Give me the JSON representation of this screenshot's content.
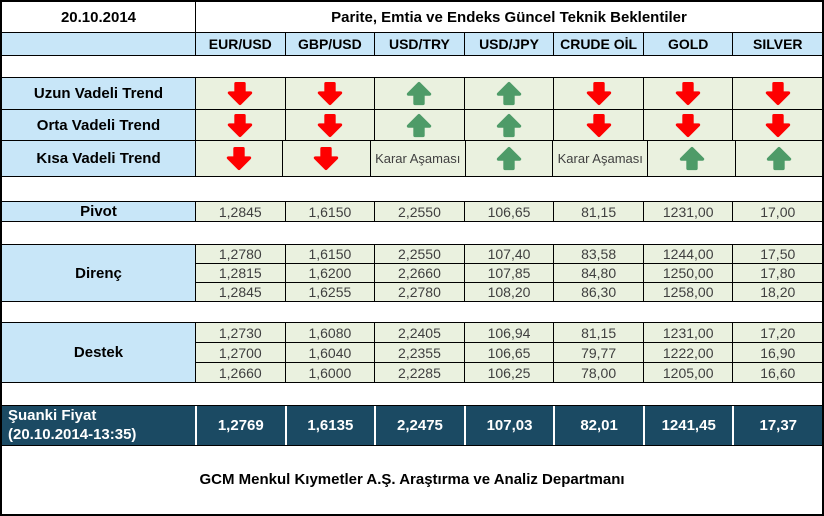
{
  "date": "20.10.2014",
  "title": "Parite, Emtia ve Endeks Güncel Teknik Beklentiler",
  "columns": [
    "EUR/USD",
    "GBP/USD",
    "USD/TRY",
    "USD/JPY",
    "CRUDE OİL",
    "GOLD",
    "SILVER"
  ],
  "trends": {
    "karar_label": "Karar Aşaması",
    "rows": [
      {
        "label": "Uzun Vadeli Trend",
        "cells": [
          "down",
          "down",
          "up",
          "up",
          "down",
          "down",
          "down"
        ]
      },
      {
        "label": "Orta Vadeli Trend",
        "cells": [
          "down",
          "down",
          "up",
          "up",
          "down",
          "down",
          "down"
        ]
      },
      {
        "label": "Kısa Vadeli Trend",
        "cells": [
          "down",
          "down",
          "karar",
          "up",
          "karar",
          "up",
          "up"
        ]
      }
    ]
  },
  "pivot": {
    "label": "Pivot",
    "values": [
      "1,2845",
      "1,6150",
      "2,2550",
      "106,65",
      "81,15",
      "1231,00",
      "17,00"
    ]
  },
  "resistance": {
    "label": "Direnç",
    "rows": [
      [
        "1,2780",
        "1,6150",
        "2,2550",
        "107,40",
        "83,58",
        "1244,00",
        "17,50"
      ],
      [
        "1,2815",
        "1,6200",
        "2,2660",
        "107,85",
        "84,80",
        "1250,00",
        "17,80"
      ],
      [
        "1,2845",
        "1,6255",
        "2,2780",
        "108,20",
        "86,30",
        "1258,00",
        "18,20"
      ]
    ]
  },
  "support": {
    "label": "Destek",
    "rows": [
      [
        "1,2730",
        "1,6080",
        "2,2405",
        "106,94",
        "81,15",
        "1231,00",
        "17,20"
      ],
      [
        "1,2700",
        "1,6040",
        "2,2355",
        "106,65",
        "79,77",
        "1222,00",
        "16,90"
      ],
      [
        "1,2660",
        "1,6000",
        "2,2285",
        "106,25",
        "78,00",
        "1205,00",
        "16,60"
      ]
    ]
  },
  "current": {
    "label": "Şuanki Fiyat",
    "sublabel": "(20.10.2014-13:35)",
    "values": [
      "1,2769",
      "1,6135",
      "2,2475",
      "107,03",
      "82,01",
      "1241,45",
      "17,37"
    ]
  },
  "footer": "GCM Menkul Kıymetler A.Ş. Araştırma ve Analiz Departmanı",
  "colors": {
    "header_blue": "#C8E6F8",
    "cell_green": "#EAF1DF",
    "current_navy": "#1B4A63",
    "arrow_red": "#FE0000",
    "arrow_green": "#4E9B68",
    "value_text": "#3F3F3F"
  }
}
